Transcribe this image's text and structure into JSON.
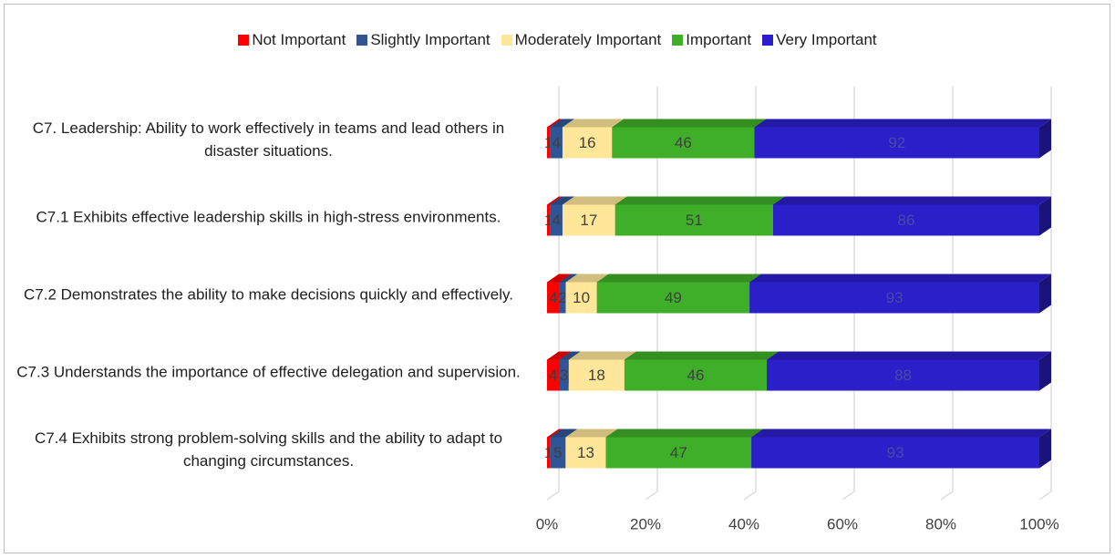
{
  "chart_data": {
    "type": "bar",
    "orientation": "horizontal",
    "stacked": "percent",
    "categories": [
      "C7. Leadership: Ability to work effectively in teams and lead others in disaster situations.",
      "C7.1 Exhibits effective leadership skills in high-stress environments.",
      "C7.2 Demonstrates the ability to make decisions quickly and effectively.",
      "C7.3 Understands the importance of effective delegation and supervision.",
      "C7.4 Exhibits strong problem-solving skills and the ability to adapt to changing circumstances."
    ],
    "series": [
      {
        "name": "Not Important",
        "color": "#ff0000",
        "values": [
          1,
          1,
          4,
          4,
          1
        ]
      },
      {
        "name": "Slightly Important",
        "color": "#2f5597",
        "values": [
          4,
          4,
          2,
          3,
          5
        ]
      },
      {
        "name": "Moderately Important",
        "color": "#ffe699",
        "values": [
          16,
          17,
          10,
          18,
          13
        ]
      },
      {
        "name": "Important",
        "color": "#3fae29",
        "values": [
          46,
          51,
          49,
          46,
          47
        ]
      },
      {
        "name": "Very Important",
        "color": "#2b1fc9",
        "values": [
          92,
          86,
          93,
          88,
          93
        ]
      }
    ],
    "xlim": [
      0,
      100
    ],
    "xticks": [
      {
        "value": 0,
        "label": "0%"
      },
      {
        "value": 20,
        "label": "20%"
      },
      {
        "value": 40,
        "label": "40%"
      },
      {
        "value": 60,
        "label": "60%"
      },
      {
        "value": 80,
        "label": "80%"
      },
      {
        "value": 100,
        "label": "100%"
      }
    ],
    "grid": true,
    "legend": "top"
  }
}
